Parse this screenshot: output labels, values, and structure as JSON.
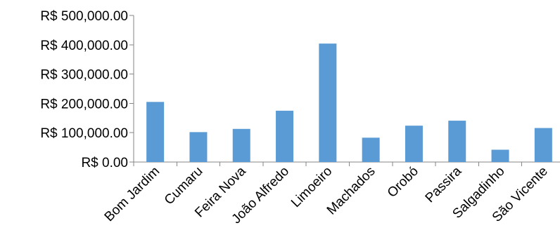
{
  "chart_data": {
    "type": "bar",
    "categories": [
      "Bom Jardim",
      "Cumaru",
      "Feira Nova",
      "João Alfredo",
      "Limoeiro",
      "Machados",
      "Orobó",
      "Passira",
      "Salgadinho",
      "São Vicente"
    ],
    "values": [
      205000,
      102000,
      113000,
      175000,
      404000,
      83000,
      124000,
      141000,
      42000,
      116000
    ],
    "ylim": [
      0,
      500000
    ],
    "yticks": [
      0,
      100000,
      200000,
      300000,
      400000,
      500000
    ],
    "ytick_labels": [
      "R$ 0.00",
      "R$ 100,000.00",
      "R$ 200,000.00",
      "R$ 300,000.00",
      "R$ 400,000.00",
      "R$ 500,000.00"
    ],
    "bar_color": "#5B9BD5",
    "grid": false,
    "legend": "none"
  }
}
